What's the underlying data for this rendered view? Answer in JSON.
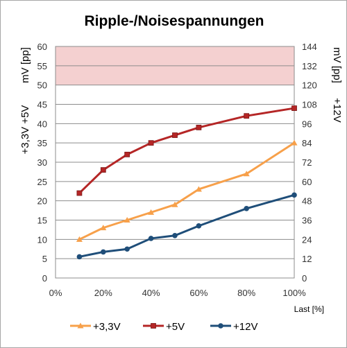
{
  "chart_data": {
    "type": "line",
    "title": "Ripple-/Noisespannungen",
    "xlabel": "Last [%]",
    "y_left_label_top": "mV [pp]",
    "y_left_label_bottom": "+3,3V +5V",
    "y_right_label_top": "mV [pp]",
    "y_right_label_bottom": "+12V",
    "x_ticks": [
      "0%",
      "20%",
      "40%",
      "60%",
      "80%",
      "100%"
    ],
    "xlim": [
      0,
      100
    ],
    "ylim_left": [
      0,
      60
    ],
    "ylim_right": [
      0,
      144
    ],
    "y_left_ticks": [
      0,
      5,
      10,
      15,
      20,
      25,
      30,
      35,
      40,
      45,
      50,
      55,
      60
    ],
    "y_right_ticks": [
      0,
      12,
      24,
      36,
      48,
      60,
      72,
      84,
      96,
      108,
      120,
      132,
      144
    ],
    "grid": true,
    "highlight_band_left": [
      50,
      60
    ],
    "highlight_color": "#f4d0d0",
    "legend_position": "bottom",
    "series": [
      {
        "name": "+3,3V",
        "axis": "left",
        "color": "#f7a04a",
        "marker": "triangle",
        "x": [
          10,
          20,
          30,
          40,
          50,
          60,
          80,
          100
        ],
        "y": [
          10,
          13,
          15,
          17,
          19,
          23,
          27,
          35
        ]
      },
      {
        "name": "+5V",
        "axis": "left",
        "color": "#b52626",
        "marker": "square",
        "x": [
          10,
          20,
          30,
          40,
          50,
          60,
          80,
          100
        ],
        "y": [
          22,
          28,
          32,
          35,
          37,
          39,
          42,
          44
        ]
      },
      {
        "name": "+12V",
        "axis": "right",
        "color": "#1f4e79",
        "marker": "circle",
        "x": [
          10,
          20,
          30,
          40,
          50,
          60,
          80,
          100
        ],
        "y": [
          13.2,
          16.2,
          18,
          24.6,
          26.4,
          32.4,
          43.2,
          51.6
        ]
      }
    ]
  }
}
